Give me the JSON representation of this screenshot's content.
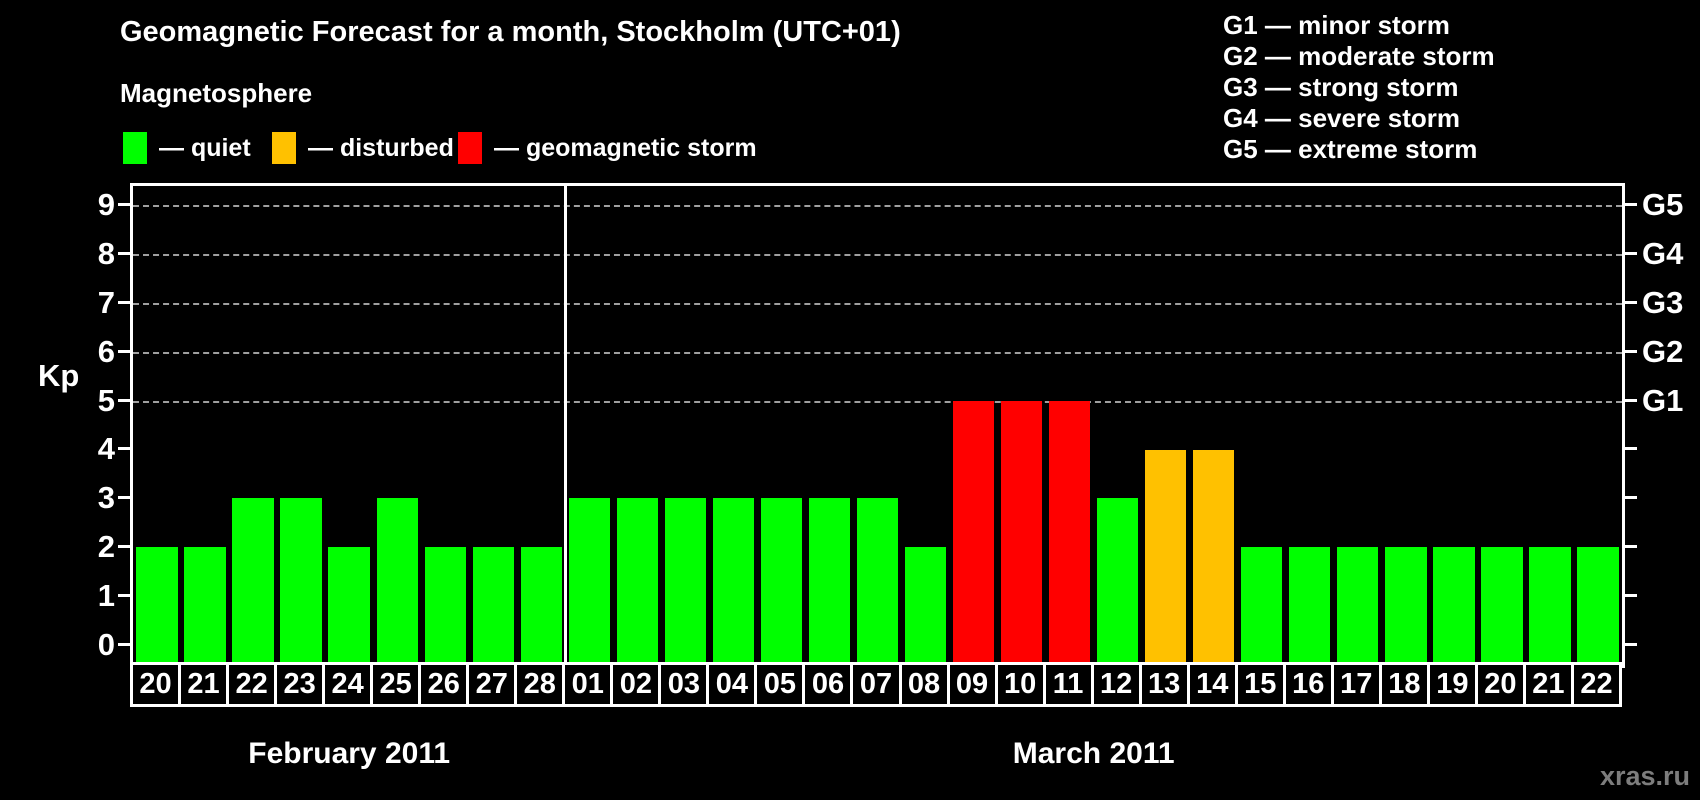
{
  "header": {
    "title": "Geomagnetic Forecast for a month, Stockholm (UTC+01)",
    "subtitle": "Magnetosphere"
  },
  "legend": {
    "items": [
      {
        "label": "— quiet",
        "status": "quiet"
      },
      {
        "label": "— disturbed",
        "status": "disturbed"
      },
      {
        "label": "— geomagnetic storm",
        "status": "storm"
      }
    ]
  },
  "g_legend": {
    "items": [
      "G1 — minor storm",
      "G2 — moderate storm",
      "G3 — strong storm",
      "G4 — severe storm",
      "G5 — extreme storm"
    ]
  },
  "colors": {
    "quiet": "#00ff00",
    "disturbed": "#ffc100",
    "storm": "#ff0000",
    "grid": "#9f9f9f",
    "axis": "#ffffff",
    "watermark": "#7d7d7d"
  },
  "chart_data": {
    "type": "bar",
    "title": "Geomagnetic Forecast for a month, Stockholm (UTC+01)",
    "ylabel": "Kp",
    "ylim": [
      -0.4,
      9.38
    ],
    "yticks": [
      0,
      1,
      2,
      3,
      4,
      5,
      6,
      7,
      8,
      9
    ],
    "gridlines_at": [
      5,
      6,
      7,
      8,
      9
    ],
    "grid": "dashed horizontal at Kp 5-9 only",
    "legend_position": "top",
    "right_axis_labels": [
      {
        "value": 5,
        "label": "G1"
      },
      {
        "value": 6,
        "label": "G2"
      },
      {
        "value": 7,
        "label": "G3"
      },
      {
        "value": 8,
        "label": "G4"
      },
      {
        "value": 9,
        "label": "G5"
      }
    ],
    "months": [
      {
        "label": "February 2011",
        "days": 9
      },
      {
        "label": "March 2011",
        "days": 22
      }
    ],
    "bars": [
      {
        "day": "20",
        "value": 2,
        "status": "quiet"
      },
      {
        "day": "21",
        "value": 2,
        "status": "quiet"
      },
      {
        "day": "22",
        "value": 3,
        "status": "quiet"
      },
      {
        "day": "23",
        "value": 3,
        "status": "quiet"
      },
      {
        "day": "24",
        "value": 2,
        "status": "quiet"
      },
      {
        "day": "25",
        "value": 3,
        "status": "quiet"
      },
      {
        "day": "26",
        "value": 2,
        "status": "quiet"
      },
      {
        "day": "27",
        "value": 2,
        "status": "quiet"
      },
      {
        "day": "28",
        "value": 2,
        "status": "quiet"
      },
      {
        "day": "01",
        "value": 3,
        "status": "quiet"
      },
      {
        "day": "02",
        "value": 3,
        "status": "quiet"
      },
      {
        "day": "03",
        "value": 3,
        "status": "quiet"
      },
      {
        "day": "04",
        "value": 3,
        "status": "quiet"
      },
      {
        "day": "05",
        "value": 3,
        "status": "quiet"
      },
      {
        "day": "06",
        "value": 3,
        "status": "quiet"
      },
      {
        "day": "07",
        "value": 3,
        "status": "quiet"
      },
      {
        "day": "08",
        "value": 2,
        "status": "quiet"
      },
      {
        "day": "09",
        "value": 5,
        "status": "storm"
      },
      {
        "day": "10",
        "value": 5,
        "status": "storm"
      },
      {
        "day": "11",
        "value": 5,
        "status": "storm"
      },
      {
        "day": "12",
        "value": 3,
        "status": "quiet"
      },
      {
        "day": "13",
        "value": 4,
        "status": "disturbed"
      },
      {
        "day": "14",
        "value": 4,
        "status": "disturbed"
      },
      {
        "day": "15",
        "value": 2,
        "status": "quiet"
      },
      {
        "day": "16",
        "value": 2,
        "status": "quiet"
      },
      {
        "day": "17",
        "value": 2,
        "status": "quiet"
      },
      {
        "day": "18",
        "value": 2,
        "status": "quiet"
      },
      {
        "day": "19",
        "value": 2,
        "status": "quiet"
      },
      {
        "day": "20",
        "value": 2,
        "status": "quiet"
      },
      {
        "day": "21",
        "value": 2,
        "status": "quiet"
      },
      {
        "day": "22",
        "value": 2,
        "status": "quiet"
      }
    ]
  },
  "watermark": "xras.ru"
}
